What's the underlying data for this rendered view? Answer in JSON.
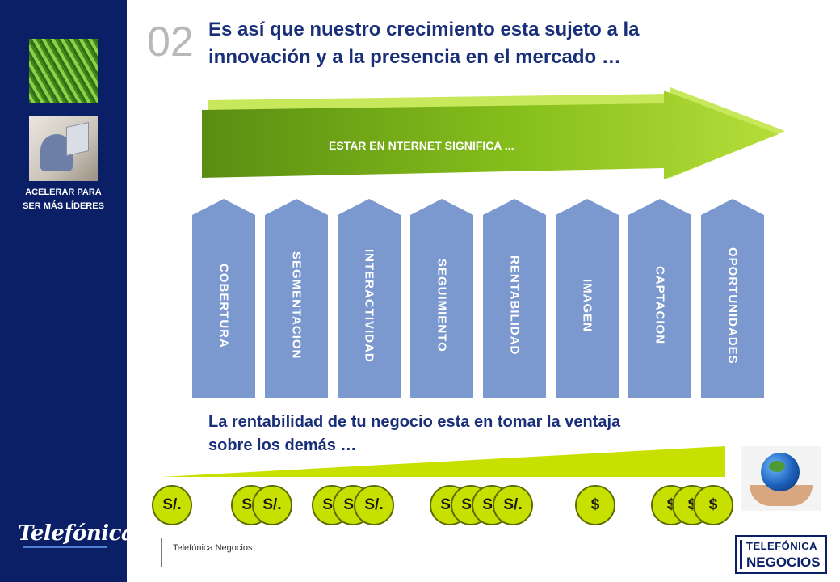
{
  "sidebar": {
    "caption_line1": "ACELERAR PARA",
    "caption_line2": "SER MÁS LÍDERES",
    "brand": "Telefónica"
  },
  "header": {
    "slide_number": "02",
    "title_line1": "Es así que nuestro crecimiento esta sujeto a la",
    "title_line2": "innovación y a la presencia en el mercado …"
  },
  "arrow": {
    "label": "ESTAR EN NTERNET SIGNIFICA ..."
  },
  "pillars": [
    "COBERTURA",
    "SEGMENTACION",
    "INTERACTIVIDAD",
    "SEGUIMIENTO",
    "RENTABILIDAD",
    "IMAGEN",
    "CAPTACION",
    "OPORTUNIDADES"
  ],
  "subtitle": {
    "line1": "La rentabilidad de tu negocio esta en tomar la ventaja",
    "line2": "sobre los demás …"
  },
  "coins": [
    [
      "S/."
    ],
    [
      "S/.",
      "S/."
    ],
    [
      "S/.",
      "S/.",
      "S/."
    ],
    [
      "S/.",
      "S/.",
      "S/.",
      "S/."
    ],
    [
      "$"
    ],
    [
      "$",
      "$",
      "$"
    ]
  ],
  "footer": {
    "text": "Telefónica Negocios",
    "logo_line1": "TELEFÓNICA",
    "logo_line2": "NEGOCIOS"
  },
  "colors": {
    "sidebar": "#0b1f66",
    "title": "#1a2f7a",
    "pillar": "#7b98cf",
    "arrow_green": "#9ccd1f",
    "coin": "#c8e000"
  },
  "icons": {
    "nature_photo": "grass-photo",
    "person_photo": "laptop-user-photo",
    "globe_photo": "globe-in-hands-photo"
  }
}
